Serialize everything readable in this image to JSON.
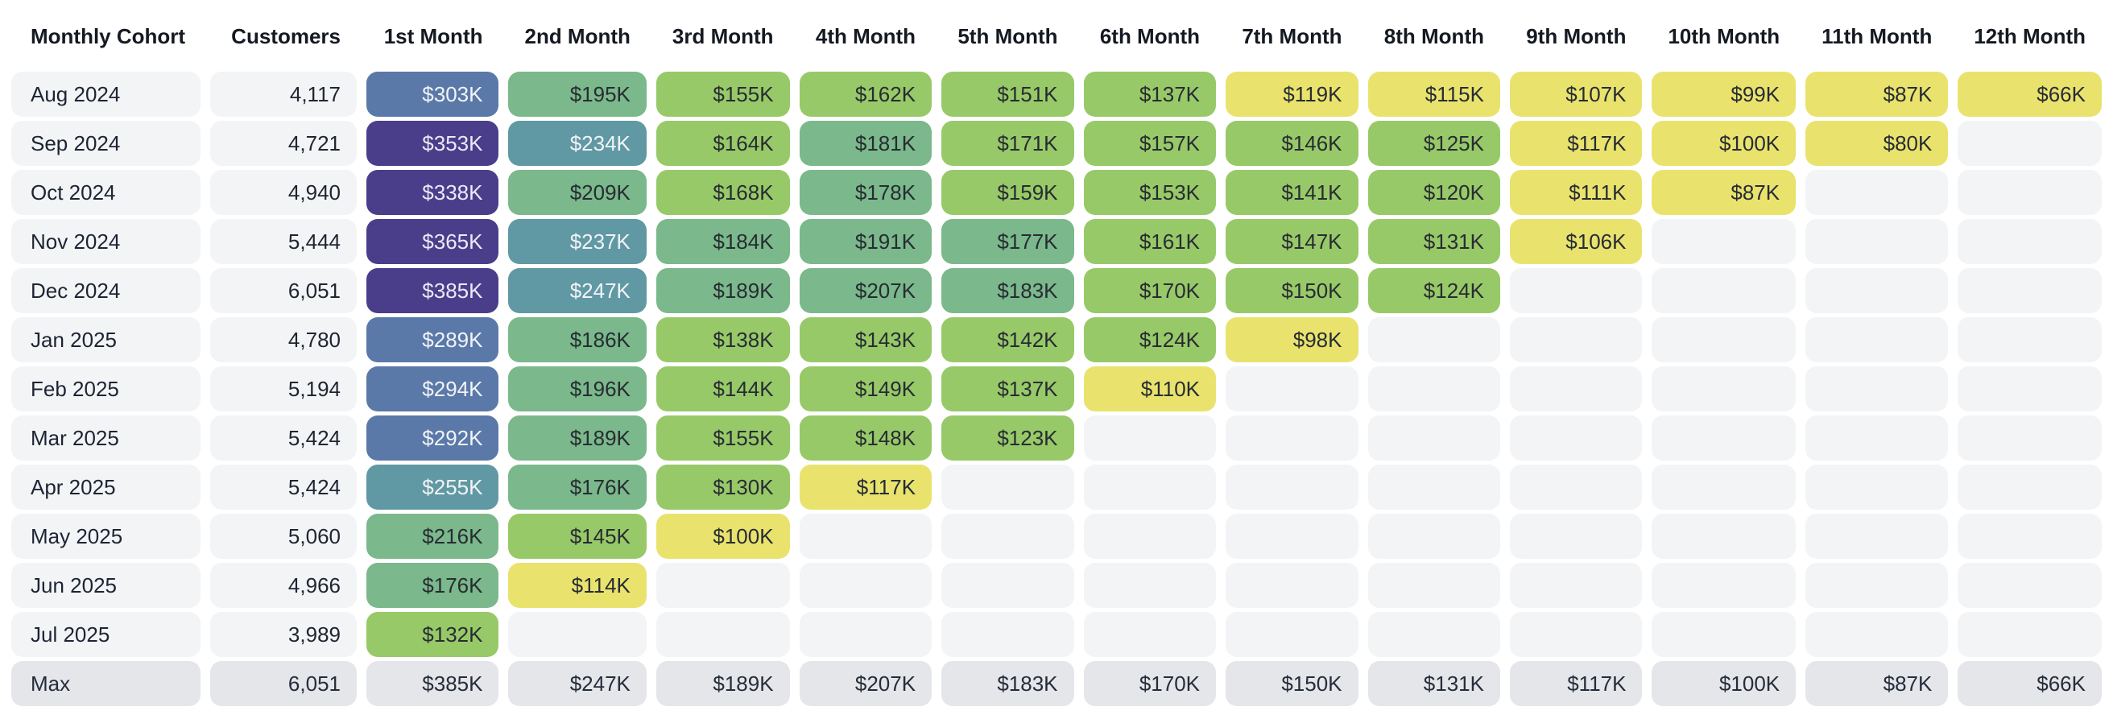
{
  "table": {
    "header": {
      "cohort_label": "Monthly Cohort",
      "customers_label": "Customers",
      "month_labels": [
        "1st Month",
        "2nd Month",
        "3rd Month",
        "4th Month",
        "5th Month",
        "6th Month",
        "7th Month",
        "8th Month",
        "9th Month",
        "10th Month",
        "11th Month",
        "12th Month"
      ],
      "text_color": "#141922"
    },
    "value_prefix": "$",
    "value_suffix": "K",
    "max_row_label": "Max"
  },
  "heatmap_colors": {
    "bins": [
      {
        "upper": 119.5,
        "bg": "#e9e36e",
        "text": "#272c33",
        "name": "yellow"
      },
      {
        "upper": 172.5,
        "bg": "#98c968",
        "text": "#272c33",
        "name": "light-green"
      },
      {
        "upper": 225.5,
        "bg": "#7bb88b",
        "text": "#272c33",
        "name": "sage-green"
      },
      {
        "upper": 278.5,
        "bg": "#6099a3",
        "text": "#f2f3f8",
        "name": "teal"
      },
      {
        "upper": 331.5,
        "bg": "#5a79a8",
        "text": "#f2f3f8",
        "name": "slate-blue"
      },
      {
        "upper": 100000,
        "bg": "#4a3e8b",
        "text": "#ece9f5",
        "name": "indigo"
      }
    ],
    "empty_cell_bg": "#f3f4f6",
    "label_cell_bg": "#f3f4f6",
    "max_row_bg": "#e4e6ea",
    "page_bg": "#ffffff"
  },
  "chart_data": {
    "type": "heatmap",
    "columns": [
      "1st Month",
      "2nd Month",
      "3rd Month",
      "4th Month",
      "5th Month",
      "6th Month",
      "7th Month",
      "8th Month",
      "9th Month",
      "10th Month",
      "11th Month",
      "12th Month"
    ],
    "values_unit": "revenue in USD thousands (displayed as $NK)",
    "rows": [
      {
        "cohort": "Aug 2024",
        "customers": 4117,
        "values": [
          303,
          195,
          155,
          162,
          151,
          137,
          119,
          115,
          107,
          99,
          87,
          66
        ]
      },
      {
        "cohort": "Sep 2024",
        "customers": 4721,
        "values": [
          353,
          234,
          164,
          181,
          171,
          157,
          146,
          125,
          117,
          100,
          80
        ]
      },
      {
        "cohort": "Oct 2024",
        "customers": 4940,
        "values": [
          338,
          209,
          168,
          178,
          159,
          153,
          141,
          120,
          111,
          87
        ]
      },
      {
        "cohort": "Nov 2024",
        "customers": 5444,
        "values": [
          365,
          237,
          184,
          191,
          177,
          161,
          147,
          131,
          106
        ]
      },
      {
        "cohort": "Dec 2024",
        "customers": 6051,
        "values": [
          385,
          247,
          189,
          207,
          183,
          170,
          150,
          124
        ]
      },
      {
        "cohort": "Jan 2025",
        "customers": 4780,
        "values": [
          289,
          186,
          138,
          143,
          142,
          124,
          98
        ]
      },
      {
        "cohort": "Feb 2025",
        "customers": 5194,
        "values": [
          294,
          196,
          144,
          149,
          137,
          110
        ]
      },
      {
        "cohort": "Mar 2025",
        "customers": 5424,
        "values": [
          292,
          189,
          155,
          148,
          123
        ]
      },
      {
        "cohort": "Apr 2025",
        "customers": 5424,
        "values": [
          255,
          176,
          130,
          117
        ]
      },
      {
        "cohort": "May 2025",
        "customers": 5060,
        "values": [
          216,
          145,
          100
        ]
      },
      {
        "cohort": "Jun 2025",
        "customers": 4966,
        "values": [
          176,
          114
        ]
      },
      {
        "cohort": "Jul 2025",
        "customers": 3989,
        "values": [
          132
        ]
      }
    ],
    "max_row": {
      "label": "Max",
      "customers": 6051,
      "values": [
        385,
        247,
        189,
        207,
        183,
        170,
        150,
        131,
        117,
        100,
        87,
        66
      ]
    },
    "color_scale": {
      "type": "binned",
      "domain": [
        66,
        385
      ],
      "legend": "off",
      "high_color": "#4a3e8b",
      "low_color": "#e9e36e"
    }
  }
}
